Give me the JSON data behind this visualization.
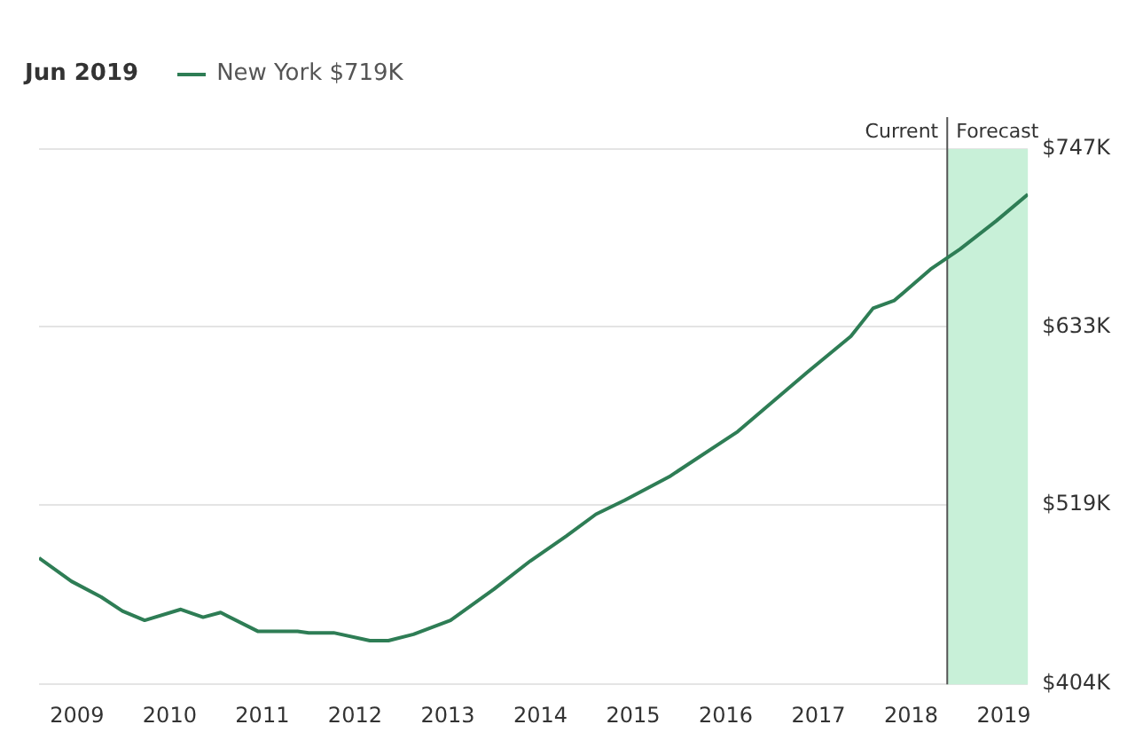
{
  "chart_data": {
    "type": "line",
    "title": "Jun 2019",
    "x": [
      2008.59,
      2008.94,
      2009.26,
      2009.49,
      2009.73,
      2010.12,
      2010.36,
      2010.55,
      2010.95,
      2011.38,
      2011.5,
      2011.77,
      2012.16,
      2012.36,
      2012.63,
      2013.03,
      2013.5,
      2013.89,
      2014.28,
      2014.6,
      2014.91,
      2015.39,
      2016.13,
      2016.88,
      2017.35,
      2017.59,
      2017.82,
      2018.21,
      2018.53,
      2018.92,
      2019.26
    ],
    "series": [
      {
        "name": "New York $719K",
        "color": "#2e7d55",
        "values": [
          485,
          470,
          460,
          451,
          445,
          452,
          447,
          450,
          438,
          438,
          437,
          437,
          432,
          432,
          436,
          445,
          465,
          483,
          499,
          513,
          522,
          537,
          566,
          604,
          627,
          645,
          650,
          670,
          683,
          701,
          718
        ]
      }
    ],
    "xlim": [
      2008.59,
      2019.26
    ],
    "xticks": [
      2009,
      2010,
      2011,
      2012,
      2013,
      2014,
      2015,
      2016,
      2017,
      2018,
      2019
    ],
    "ylim": [
      404,
      747
    ],
    "yticks": [
      {
        "value": 404,
        "label": "$404K"
      },
      {
        "value": 519,
        "label": "$519K"
      },
      {
        "value": 633,
        "label": "$633K"
      },
      {
        "value": 747,
        "label": "$747K"
      }
    ],
    "ref_lines": [
      {
        "axis": "x",
        "value": 2018.39,
        "label": "Current",
        "color": "#555555"
      }
    ],
    "bands": [
      {
        "axis": "x",
        "from": 2018.39,
        "to": 2019.26,
        "label": "Forecast",
        "color": "#c8f0d8"
      }
    ],
    "grid": "y",
    "legend": "top left",
    "marker": "none",
    "line_style": "solid"
  }
}
